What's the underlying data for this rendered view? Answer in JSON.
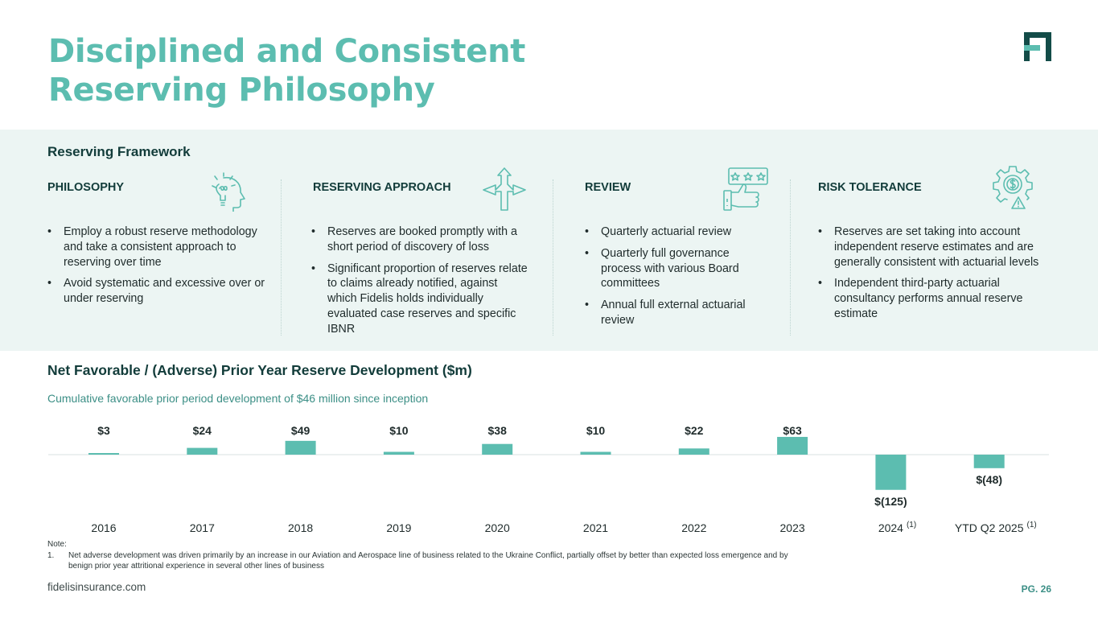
{
  "title": {
    "line1": "Disciplined and Consistent",
    "line2": "Reserving Philosophy"
  },
  "framework": {
    "title": "Reserving Framework",
    "columns": [
      {
        "heading": "PHILOSOPHY",
        "icon": "idea-head-icon",
        "bullets": [
          "Employ a robust reserve methodology and take a consistent approach to reserving over time",
          "Avoid systematic and excessive over or under reserving"
        ]
      },
      {
        "heading": "RESERVING APPROACH",
        "icon": "split-arrows-icon",
        "bullets": [
          "Reserves are booked promptly with a short period of discovery of loss",
          "Significant proportion of reserves relate to claims already notified, against which Fidelis holds individually evaluated case reserves and specific IBNR"
        ]
      },
      {
        "heading": "REVIEW",
        "icon": "rating-thumbs-up-icon",
        "bullets": [
          "Quarterly actuarial review",
          "Quarterly full governance process with various Board committees",
          "Annual full external actuarial review"
        ]
      },
      {
        "heading": "RISK TOLERANCE",
        "icon": "gear-dollar-warning-icon",
        "bullets": [
          "Reserves are set taking into account independent reserve estimates and are generally consistent with actuarial levels",
          "Independent third-party actuarial consultancy performs annual reserve estimate"
        ]
      }
    ]
  },
  "chart_section": {
    "title": "Net Favorable / (Adverse) Prior Year Reserve Development ($m)",
    "subtitle": "Cumulative favorable prior period development of $46 million since inception"
  },
  "chart_data": {
    "type": "bar",
    "categories": [
      "2016",
      "2017",
      "2018",
      "2019",
      "2020",
      "2021",
      "2022",
      "2023",
      "2024",
      "YTD Q2 2025"
    ],
    "category_notes": [
      "",
      "",
      "",
      "",
      "",
      "",
      "",
      "",
      "(1)",
      "(1)"
    ],
    "values": [
      3,
      24,
      49,
      10,
      38,
      10,
      22,
      63,
      -125,
      -48
    ],
    "value_labels": [
      "$3",
      "$24",
      "$49",
      "$10",
      "$38",
      "$10",
      "$22",
      "$63",
      "$(125)",
      "$(48)"
    ],
    "bar_color": "#5cbdb0",
    "ylim": [
      -125,
      63
    ]
  },
  "note": {
    "label": "Note:",
    "items": [
      {
        "num": "1.",
        "text": "Net adverse development was driven primarily by an increase in our Aviation and Aerospace line of business related to the Ukraine Conflict, partially offset by better than expected loss emergence and by benign prior year attritional experience in several other lines of business"
      }
    ]
  },
  "footer": {
    "url": "fidelisinsurance.com",
    "page": "PG. 26"
  },
  "colors": {
    "accent": "#5cbdb0",
    "dark_teal": "#123c3a",
    "panel_bg": "#ecf5f3",
    "logo": "#134c48"
  }
}
